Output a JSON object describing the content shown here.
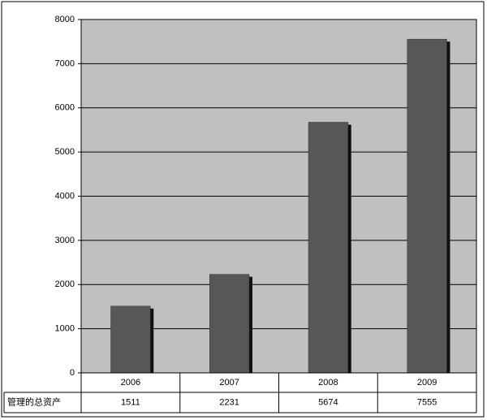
{
  "chart_data": {
    "type": "bar",
    "categories": [
      "2006",
      "2007",
      "2008",
      "2009"
    ],
    "series": [
      {
        "name": "管理的总资产",
        "color": "#575757",
        "values": [
          1511,
          2231,
          5674,
          7555
        ]
      }
    ],
    "ylim": [
      0,
      8000
    ],
    "yticks": [
      0,
      1000,
      2000,
      3000,
      4000,
      5000,
      6000,
      7000,
      8000
    ],
    "grid": true,
    "data_table": true
  }
}
